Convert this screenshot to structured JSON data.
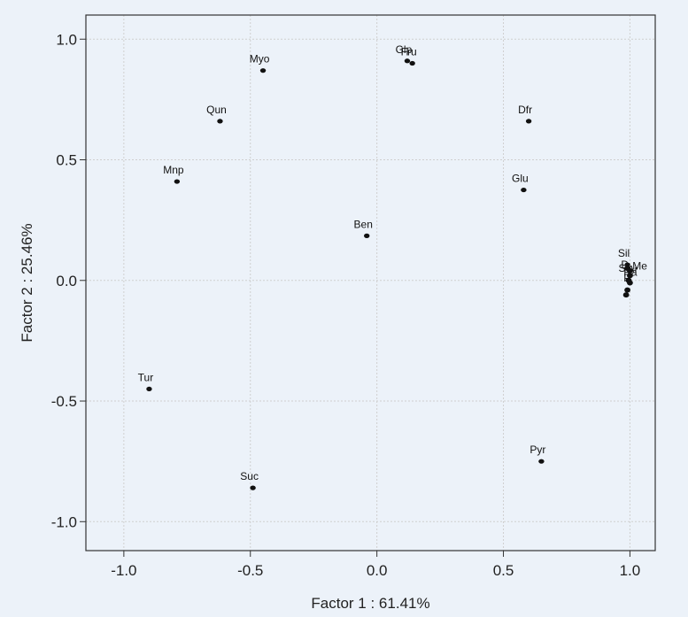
{
  "chart_data": {
    "type": "scatter",
    "title": "",
    "xlabel": "Factor 1 : 61.41%",
    "ylabel": "Factor 2 : 25.46%",
    "xlim": [
      -1.15,
      1.1
    ],
    "ylim": [
      -1.12,
      1.1
    ],
    "xticks": [
      -1.0,
      -0.5,
      0.0,
      0.5,
      1.0
    ],
    "yticks": [
      -1.0,
      -0.5,
      0.0,
      0.5,
      1.0
    ],
    "xtick_labels": [
      "-1.0",
      "-0.5",
      "0.0",
      "0.5",
      "1.0"
    ],
    "ytick_labels": [
      "-1.0",
      "-0.5",
      "0.0",
      "0.5",
      "1.0"
    ],
    "grid": true,
    "grid_style": "dashed",
    "points": [
      {
        "label": "Myo",
        "x": -0.45,
        "y": 0.87
      },
      {
        "label": "Glp",
        "x": 0.12,
        "y": 0.91
      },
      {
        "label": "Fru",
        "x": 0.14,
        "y": 0.9
      },
      {
        "label": "Qun",
        "x": -0.62,
        "y": 0.66
      },
      {
        "label": "Dfr",
        "x": 0.6,
        "y": 0.66
      },
      {
        "label": "Mnp",
        "x": -0.79,
        "y": 0.41
      },
      {
        "label": "Glu",
        "x": 0.58,
        "y": 0.375
      },
      {
        "label": "Ben",
        "x": -0.04,
        "y": 0.185
      },
      {
        "label": "Sil",
        "x": 0.99,
        "y": 0.065
      },
      {
        "label": "Tur",
        "x": -0.9,
        "y": -0.45
      },
      {
        "label": "Pyr",
        "x": 0.65,
        "y": -0.75
      },
      {
        "label": "Suc",
        "x": -0.49,
        "y": -0.86
      }
    ],
    "cluster_labels": [
      "D",
      "S",
      "Ra",
      "Ar",
      "Me",
      "P"
    ],
    "marker_color": "#111111"
  }
}
